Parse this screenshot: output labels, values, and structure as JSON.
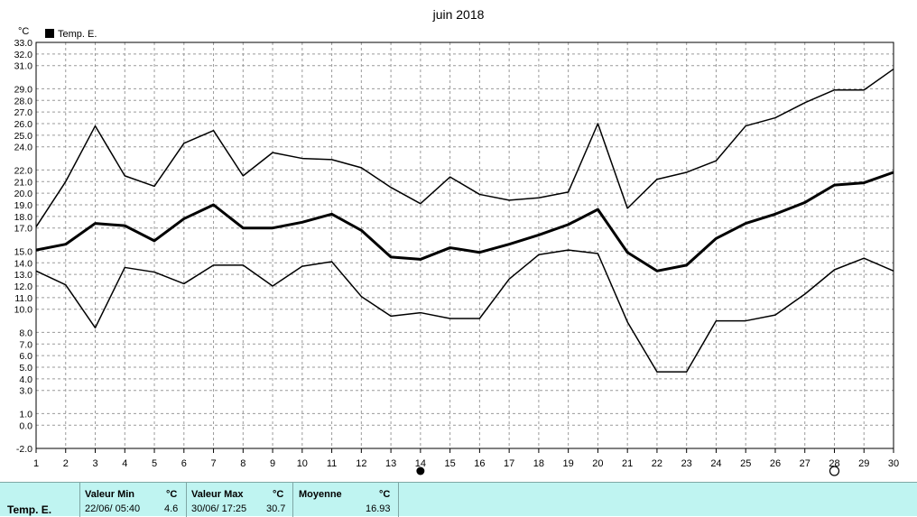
{
  "chart_data": {
    "type": "line",
    "title": "juin 2018",
    "unit_label": "°C",
    "legend": [
      "Temp. E."
    ],
    "x": [
      1,
      2,
      3,
      4,
      5,
      6,
      7,
      8,
      9,
      10,
      11,
      12,
      13,
      14,
      15,
      16,
      17,
      18,
      19,
      20,
      21,
      22,
      23,
      24,
      25,
      26,
      27,
      28,
      29,
      30
    ],
    "x_ticks": [
      1,
      2,
      3,
      4,
      5,
      6,
      7,
      8,
      9,
      10,
      11,
      12,
      13,
      14,
      15,
      16,
      17,
      18,
      19,
      20,
      21,
      22,
      23,
      24,
      25,
      26,
      27,
      28,
      29,
      30
    ],
    "y_ticks": [
      "33.0",
      "32.0",
      "31.0",
      "29.0",
      "28.0",
      "27.0",
      "26.0",
      "25.0",
      "24.0",
      "22.0",
      "21.0",
      "20.0",
      "19.0",
      "18.0",
      "17.0",
      "15.0",
      "14.0",
      "13.0",
      "12.0",
      "11.0",
      "10.0",
      "8.0",
      "7.0",
      "6.0",
      "5.0",
      "4.0",
      "3.0",
      "1.0",
      "0.0",
      "-2.0"
    ],
    "ylim": [
      -2,
      33
    ],
    "grid": true,
    "legend_position": "top-left",
    "series": [
      {
        "name": "max",
        "width": 1.5,
        "values": [
          17.1,
          21.0,
          25.8,
          21.5,
          20.6,
          24.3,
          25.4,
          21.5,
          23.5,
          23.0,
          22.9,
          22.2,
          20.5,
          19.1,
          21.4,
          19.9,
          19.4,
          19.6,
          20.1,
          26.0,
          18.7,
          21.2,
          21.8,
          22.8,
          25.8,
          26.5,
          27.8,
          28.9,
          28.9,
          30.7
        ]
      },
      {
        "name": "moyenne",
        "width": 3,
        "values": [
          15.1,
          15.6,
          17.4,
          17.2,
          15.9,
          17.8,
          19.0,
          17.0,
          17.0,
          17.5,
          18.2,
          16.8,
          14.5,
          14.3,
          15.3,
          14.9,
          15.6,
          16.4,
          17.3,
          18.6,
          14.9,
          13.3,
          13.8,
          16.1,
          17.4,
          18.2,
          19.2,
          20.7,
          20.9,
          21.8
        ]
      },
      {
        "name": "min",
        "width": 1.5,
        "values": [
          13.3,
          12.1,
          8.4,
          13.6,
          13.2,
          12.2,
          13.8,
          13.8,
          12.0,
          13.7,
          14.1,
          11.1,
          9.4,
          9.7,
          9.2,
          9.2,
          12.6,
          14.7,
          15.1,
          14.8,
          8.9,
          4.6,
          4.6,
          9.0,
          9.0,
          9.5,
          11.3,
          13.4,
          14.4,
          13.3
        ]
      }
    ],
    "markers": [
      {
        "day": 14,
        "kind": "filled"
      },
      {
        "day": 28,
        "kind": "open"
      }
    ]
  },
  "stats": {
    "row_label": "Temp. E.",
    "min_header": "Valeur Min",
    "min_unit": "°C",
    "min_date": "22/06/  05:40",
    "min_value": "4.6",
    "max_header": "Valeur Max",
    "max_unit": "°C",
    "max_date": "30/06/  17:25",
    "max_value": "30.7",
    "avg_header": "Moyenne",
    "avg_unit": "°C",
    "avg_value": "16.93"
  }
}
